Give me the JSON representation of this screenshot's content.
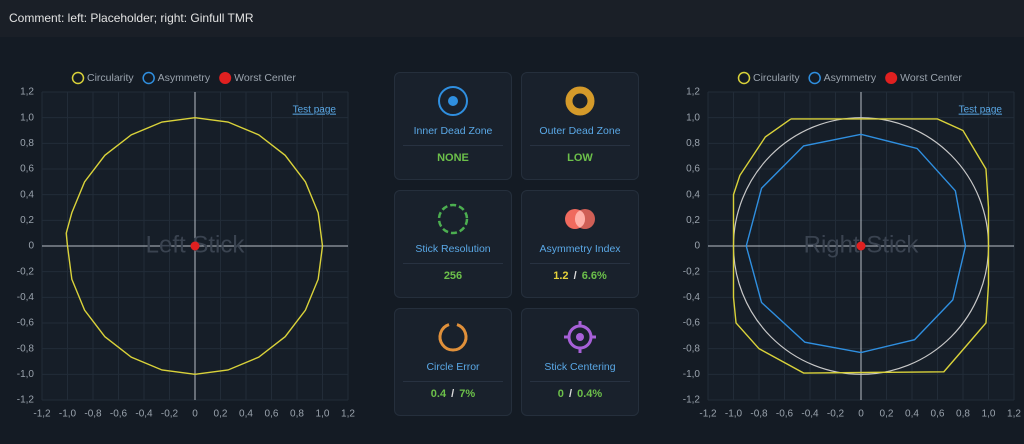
{
  "header": {
    "comment": "Comment: left: Placeholder; right: Ginfull TMR"
  },
  "chart_data": [
    {
      "type": "line",
      "annotation": "Left Stick",
      "link": "Test page",
      "grid": true,
      "xlim": [
        -1.2,
        1.2
      ],
      "ylim": [
        -1.2,
        1.2
      ],
      "xticks": [
        {
          "value": -1.2,
          "label": "-1,2"
        },
        {
          "value": -1.0,
          "label": "-1,0"
        },
        {
          "value": -0.8,
          "label": "-0,8"
        },
        {
          "value": -0.6,
          "label": "-0,6"
        },
        {
          "value": -0.4,
          "label": "-0,4"
        },
        {
          "value": -0.2,
          "label": "-0,2"
        },
        0,
        {
          "value": 0.2,
          "label": "0,2"
        },
        {
          "value": 0.4,
          "label": "0,4"
        },
        {
          "value": 0.6,
          "label": "0,6"
        },
        {
          "value": 0.8,
          "label": "0,8"
        },
        {
          "value": 1.0,
          "label": "1,0"
        },
        {
          "value": 1.2,
          "label": "1,2"
        }
      ],
      "yticks": [
        {
          "value": -1.2,
          "label": "-1,2"
        },
        {
          "value": -1.0,
          "label": "-1,0"
        },
        {
          "value": -0.8,
          "label": "-0,8"
        },
        {
          "value": -0.6,
          "label": "-0,6"
        },
        {
          "value": -0.4,
          "label": "-0,4"
        },
        {
          "value": -0.2,
          "label": "-0,2"
        },
        0,
        {
          "value": 0.2,
          "label": "0,2"
        },
        {
          "value": 0.4,
          "label": "0,4"
        },
        {
          "value": 0.6,
          "label": "0,6"
        },
        {
          "value": 0.8,
          "label": "0,8"
        },
        {
          "value": 1.0,
          "label": "1,0"
        },
        {
          "value": 1.2,
          "label": "1,2"
        }
      ],
      "series": [
        {
          "name": "Circularity",
          "color": "#d9d23a",
          "kind": "line",
          "x": [
            1.0,
            0.966,
            0.866,
            0.707,
            0.5,
            0.259,
            0,
            -0.259,
            -0.5,
            -0.707,
            -0.866,
            -0.966,
            -1.01,
            -1.0,
            -0.966,
            -0.866,
            -0.707,
            -0.5,
            -0.259,
            0,
            0.259,
            0.5,
            0.707,
            0.866,
            0.966,
            1.0
          ],
          "values": [
            0,
            0.259,
            0.5,
            0.707,
            0.866,
            0.966,
            1.0,
            0.966,
            0.866,
            0.707,
            0.5,
            0.259,
            0.1,
            0,
            -0.259,
            -0.5,
            -0.707,
            -0.866,
            -0.966,
            -1.0,
            -0.966,
            -0.866,
            -0.707,
            -0.5,
            -0.259,
            0
          ]
        },
        {
          "name": "Asymmetry",
          "color": "#2f8fe0",
          "kind": "line",
          "x": [],
          "values": []
        },
        {
          "name": "Worst Center",
          "color": "#e02020",
          "kind": "point",
          "x": [
            0
          ],
          "values": [
            0
          ]
        }
      ]
    },
    {
      "type": "line",
      "annotation": "Right Stick",
      "link": "Test page",
      "grid": true,
      "reference_circle": {
        "radius": 1,
        "color": "#c8c8c8"
      },
      "xlim": [
        -1.2,
        1.2
      ],
      "ylim": [
        -1.2,
        1.2
      ],
      "xticks": [
        {
          "value": -1.2,
          "label": "-1,2"
        },
        {
          "value": -1.0,
          "label": "-1,0"
        },
        {
          "value": -0.8,
          "label": "-0,8"
        },
        {
          "value": -0.6,
          "label": "-0,6"
        },
        {
          "value": -0.4,
          "label": "-0,4"
        },
        {
          "value": -0.2,
          "label": "-0,2"
        },
        0,
        {
          "value": 0.2,
          "label": "0,2"
        },
        {
          "value": 0.4,
          "label": "0,4"
        },
        {
          "value": 0.6,
          "label": "0,6"
        },
        {
          "value": 0.8,
          "label": "0,8"
        },
        {
          "value": 1.0,
          "label": "1,0"
        },
        {
          "value": 1.2,
          "label": "1,2"
        }
      ],
      "yticks": [
        {
          "value": -1.2,
          "label": "-1,2"
        },
        {
          "value": -1.0,
          "label": "-1,0"
        },
        {
          "value": -0.8,
          "label": "-0,8"
        },
        {
          "value": -0.6,
          "label": "-0,6"
        },
        {
          "value": -0.4,
          "label": "-0,4"
        },
        {
          "value": -0.2,
          "label": "-0,2"
        },
        0,
        {
          "value": 0.2,
          "label": "0,2"
        },
        {
          "value": 0.4,
          "label": "0,4"
        },
        {
          "value": 0.6,
          "label": "0,6"
        },
        {
          "value": 0.8,
          "label": "0,8"
        },
        {
          "value": 1.0,
          "label": "1,0"
        },
        {
          "value": 1.2,
          "label": "1,2"
        }
      ],
      "series": [
        {
          "name": "Circularity",
          "color": "#d9d23a",
          "kind": "line",
          "x": [
            -0.55,
            0.6,
            0.8,
            0.98,
            1.0,
            1.0,
            0.98,
            0.85,
            0.65,
            -0.45,
            -0.8,
            -0.98,
            -1.0,
            -1.0,
            -0.95,
            -0.75,
            -0.55
          ],
          "values": [
            0.99,
            0.99,
            0.9,
            0.6,
            0.3,
            -0.3,
            -0.6,
            -0.75,
            -0.98,
            -0.99,
            -0.8,
            -0.6,
            -0.4,
            0.4,
            0.55,
            0.85,
            0.99
          ]
        },
        {
          "name": "Asymmetry",
          "color": "#2f8fe0",
          "kind": "line",
          "x": [
            0.82,
            0.74,
            0.44,
            0,
            -0.45,
            -0.78,
            -0.9,
            -0.78,
            -0.44,
            0,
            0.42,
            0.72,
            0.82
          ],
          "values": [
            0,
            0.43,
            0.76,
            0.87,
            0.78,
            0.45,
            0,
            -0.44,
            -0.75,
            -0.83,
            -0.73,
            -0.42,
            0
          ]
        },
        {
          "name": "Worst Center",
          "color": "#e02020",
          "kind": "point",
          "x": [
            0
          ],
          "values": [
            0
          ]
        }
      ]
    }
  ],
  "cards": [
    {
      "title": "Inner Dead Zone",
      "value": [
        {
          "text": "NONE",
          "color": "#6cc04a"
        }
      ]
    },
    {
      "title": "Outer Dead Zone",
      "value": [
        {
          "text": "LOW",
          "color": "#6cc04a"
        }
      ]
    },
    {
      "title": "Stick Resolution",
      "value": [
        {
          "text": "256",
          "color": "#6cc04a"
        }
      ]
    },
    {
      "title": "Asymmetry Index",
      "value": [
        {
          "text": "1.2",
          "color": "#e6d23a"
        },
        {
          "text": "/",
          "color": "#dddddd"
        },
        {
          "text": "6.6%",
          "color": "#6cc04a"
        }
      ]
    },
    {
      "title": "Circle Error",
      "value": [
        {
          "text": "0.4",
          "color": "#6cc04a"
        },
        {
          "text": "/",
          "color": "#dddddd"
        },
        {
          "text": "7%",
          "color": "#6cc04a"
        }
      ]
    },
    {
      "title": "Stick Centering",
      "value": [
        {
          "text": "0",
          "color": "#6cc04a"
        },
        {
          "text": "/",
          "color": "#dddddd"
        },
        {
          "text": "0.4%",
          "color": "#6cc04a"
        }
      ]
    }
  ]
}
